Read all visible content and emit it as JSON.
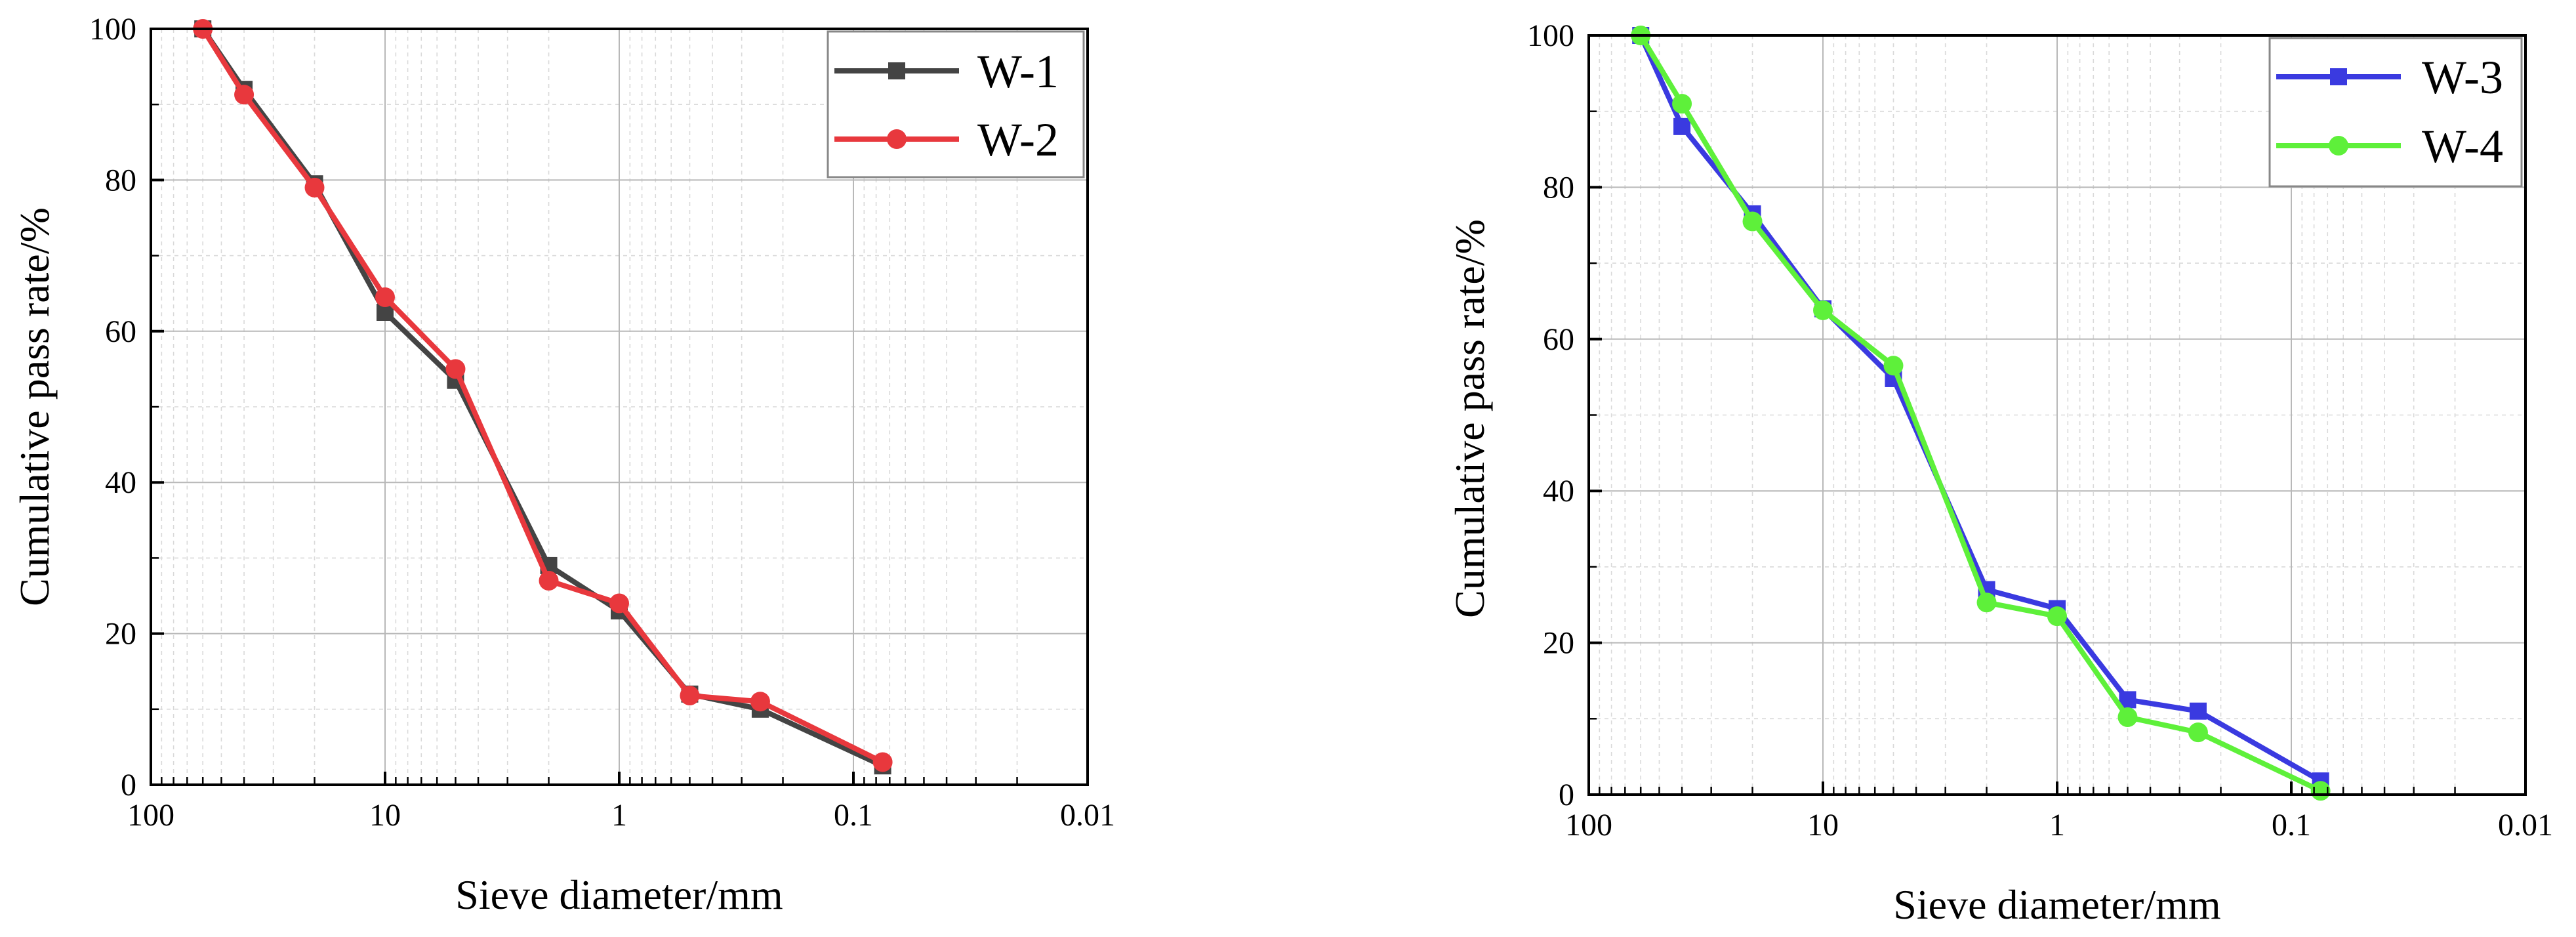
{
  "chart_data": [
    {
      "type": "line",
      "xscale": "log",
      "xreversed": true,
      "xlim": [
        100,
        0.01
      ],
      "ylim": [
        0,
        100
      ],
      "xlabel": "Sieve diameter/mm",
      "ylabel": "Cumulative pass rate/%",
      "xticks": [
        "100",
        "10",
        "1",
        "0.1",
        "0.01"
      ],
      "yticks": [
        "0",
        "20",
        "40",
        "60",
        "80",
        "100"
      ],
      "legend_position": "top-right",
      "series": [
        {
          "name": "W-1",
          "color": "#444444",
          "marker": "square",
          "x": [
            60,
            40,
            20,
            10,
            5,
            2,
            1,
            0.5,
            0.25,
            0.075
          ],
          "y": [
            100,
            92,
            79.5,
            62.5,
            53.5,
            29,
            23,
            12,
            10,
            2.5
          ]
        },
        {
          "name": "W-2",
          "color": "#e8383d",
          "marker": "circle",
          "x": [
            60,
            40,
            20,
            10,
            5,
            2,
            1,
            0.5,
            0.25,
            0.075
          ],
          "y": [
            100,
            91.3,
            79,
            64.5,
            55,
            27,
            24,
            11.8,
            11,
            3
          ]
        }
      ]
    },
    {
      "type": "line",
      "xscale": "log",
      "xreversed": true,
      "xlim": [
        100,
        0.01
      ],
      "ylim": [
        0,
        100
      ],
      "xlabel": "Sieve diameter/mm",
      "ylabel": "Cumulative pass rate/%",
      "xticks": [
        "100",
        "10",
        "1",
        "0.1",
        "0.01"
      ],
      "yticks": [
        "0",
        "20",
        "40",
        "60",
        "80",
        "100"
      ],
      "legend_position": "top-right",
      "series": [
        {
          "name": "W-3",
          "color": "#3a3ae0",
          "marker": "square",
          "x": [
            60,
            40,
            20,
            10,
            5,
            2,
            1,
            0.5,
            0.25,
            0.075
          ],
          "y": [
            100,
            88,
            76.5,
            64,
            54.8,
            27,
            24.5,
            12.5,
            11,
            1.8
          ]
        },
        {
          "name": "W-4",
          "color": "#5ef03a",
          "marker": "circle",
          "x": [
            60,
            40,
            20,
            10,
            5,
            2,
            1,
            0.5,
            0.25,
            0.075
          ],
          "y": [
            100,
            91,
            75.5,
            63.8,
            56.5,
            25.3,
            23.5,
            10.2,
            8.2,
            0.5
          ]
        }
      ]
    }
  ]
}
